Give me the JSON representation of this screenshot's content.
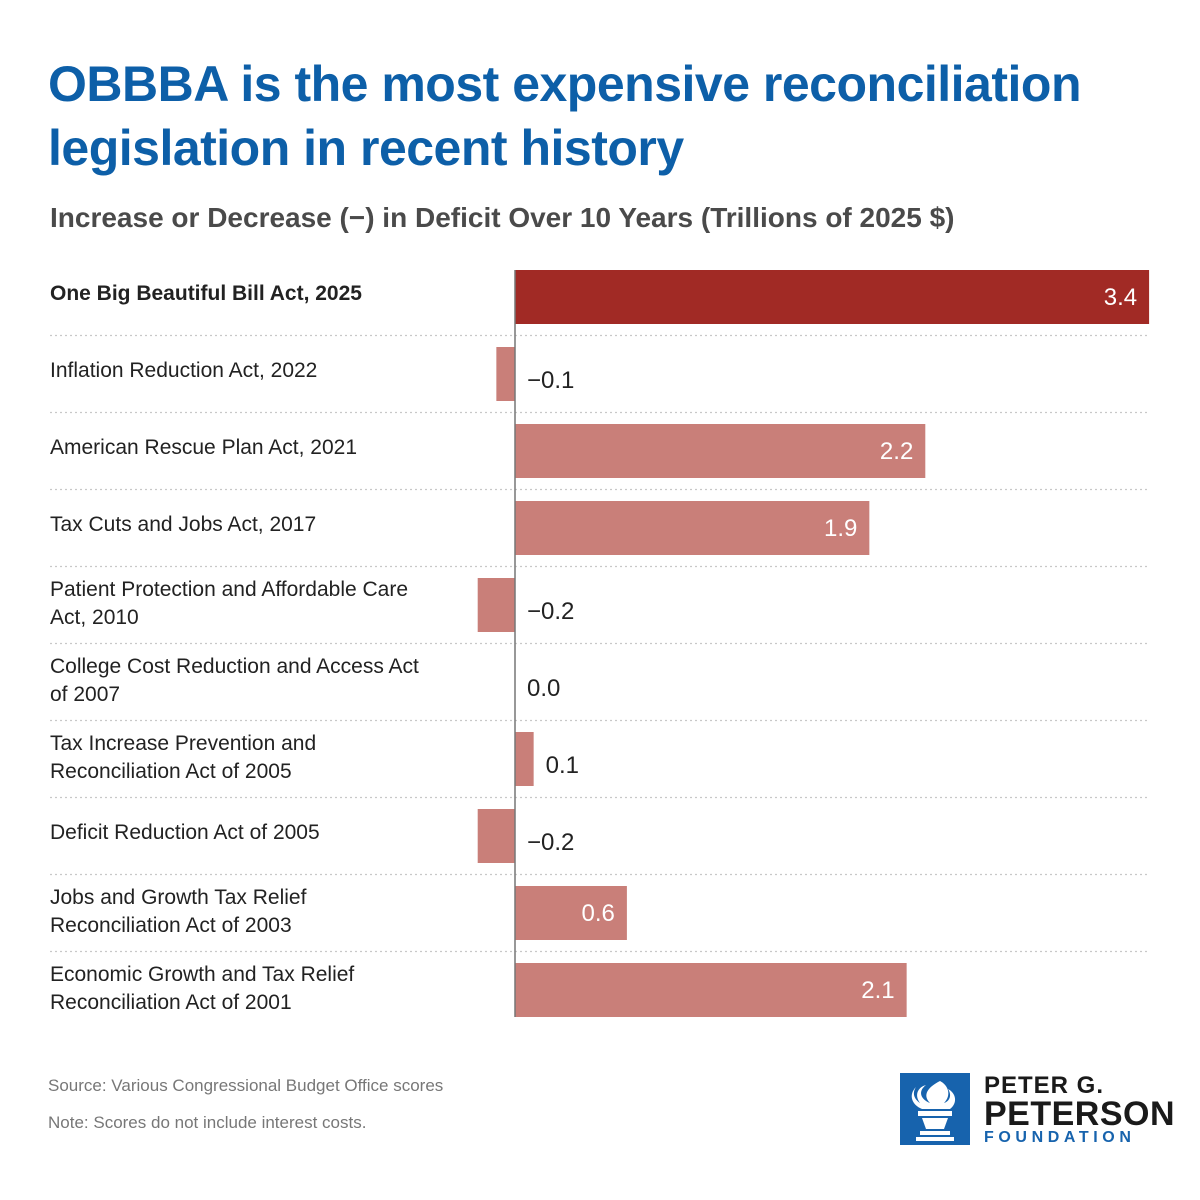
{
  "title": "OBBBA is the most expensive reconciliation legislation in recent history",
  "subtitle": "Increase or Decrease (−) in Deficit Over 10 Years (Trillions of 2025 $)",
  "source": "Source: Various Congressional Budget Office scores",
  "note": "Note: Scores do not include interest costs.",
  "logo": {
    "line1": "PETER G.",
    "line2": "PETERSON",
    "line3": "FOUNDATION",
    "icon": "torch-icon"
  },
  "colors": {
    "highlight_bar": "#a12a25",
    "bar": "#c97f79",
    "title": "#0d5fa8",
    "brand": "#1763ad"
  },
  "chart_data": {
    "type": "bar",
    "orientation": "horizontal",
    "title": "OBBBA is the most expensive reconciliation legislation in recent history",
    "subtitle": "Increase or Decrease (−) in Deficit Over 10 Years (Trillions of 2025 $)",
    "xlim": [
      -0.2,
      3.4
    ],
    "grid": false,
    "categories": [
      "One Big Beautiful Bill Act, 2025",
      "Inflation Reduction Act, 2022",
      "American Rescue Plan Act, 2021",
      "Tax Cuts and Jobs Act, 2017",
      "Patient Protection and Affordable Care Act, 2010",
      "College Cost Reduction and Access Act of 2007",
      "Tax Increase Prevention and Reconciliation Act of 2005",
      "Deficit Reduction Act of 2005",
      "Jobs and Growth Tax Relief Reconciliation Act of 2003",
      "Economic Growth and Tax Relief Reconciliation Act of 2001"
    ],
    "label_lines": [
      [
        "One Big Beautiful Bill Act, 2025"
      ],
      [
        "Inflation Reduction Act, 2022"
      ],
      [
        "American Rescue Plan Act, 2021"
      ],
      [
        "Tax Cuts and Jobs Act, 2017"
      ],
      [
        "Patient Protection and Affordable Care",
        "Act, 2010"
      ],
      [
        "College Cost Reduction and Access Act",
        "of 2007"
      ],
      [
        "Tax Increase Prevention and",
        "Reconciliation Act of 2005"
      ],
      [
        "Deficit Reduction Act of 2005"
      ],
      [
        "Jobs and Growth Tax Relief",
        "Reconciliation Act of 2003"
      ],
      [
        "Economic Growth and Tax Relief",
        "Reconciliation Act of 2001"
      ]
    ],
    "values": [
      3.4,
      -0.1,
      2.2,
      1.9,
      -0.2,
      0.0,
      0.1,
      -0.2,
      0.6,
      2.1
    ],
    "value_labels": [
      "3.4",
      "−0.1",
      "2.2",
      "1.9",
      "−0.2",
      "0.0",
      "0.1",
      "−0.2",
      "0.6",
      "2.1"
    ],
    "highlight_index": 0
  }
}
